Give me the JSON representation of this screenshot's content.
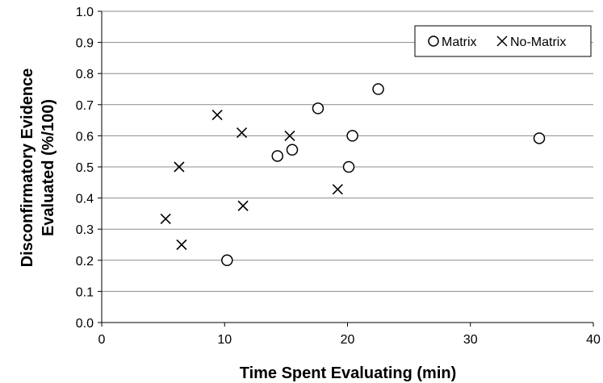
{
  "chart_data": {
    "type": "scatter",
    "title": "",
    "xlabel": "Time Spent Evaluating (min)",
    "ylabel_lines": [
      "Disconfirmatory Evidence",
      "Evaluated (%/100)"
    ],
    "xlim": [
      0,
      40
    ],
    "ylim": [
      0,
      1
    ],
    "x_ticks": [
      "0",
      "10",
      "20",
      "30",
      "40"
    ],
    "y_ticks": [
      "0.0",
      "0.1",
      "0.2",
      "0.3",
      "0.4",
      "0.5",
      "0.6",
      "0.7",
      "0.8",
      "0.9",
      "1.0"
    ],
    "grid": "horizontal",
    "legend_position": "top-right",
    "series": [
      {
        "name": "Matrix",
        "marker": "circle",
        "points": [
          {
            "x": 10.2,
            "y": 0.2
          },
          {
            "x": 14.3,
            "y": 0.535
          },
          {
            "x": 15.5,
            "y": 0.555
          },
          {
            "x": 17.6,
            "y": 0.688
          },
          {
            "x": 20.1,
            "y": 0.5
          },
          {
            "x": 20.4,
            "y": 0.6
          },
          {
            "x": 22.5,
            "y": 0.75
          },
          {
            "x": 35.6,
            "y": 0.592
          }
        ]
      },
      {
        "name": "No-Matrix",
        "marker": "cross",
        "points": [
          {
            "x": 5.2,
            "y": 0.333
          },
          {
            "x": 6.3,
            "y": 0.5
          },
          {
            "x": 6.5,
            "y": 0.25
          },
          {
            "x": 9.4,
            "y": 0.667
          },
          {
            "x": 11.4,
            "y": 0.61
          },
          {
            "x": 11.5,
            "y": 0.375
          },
          {
            "x": 15.3,
            "y": 0.6
          },
          {
            "x": 19.2,
            "y": 0.428
          }
        ]
      }
    ]
  }
}
